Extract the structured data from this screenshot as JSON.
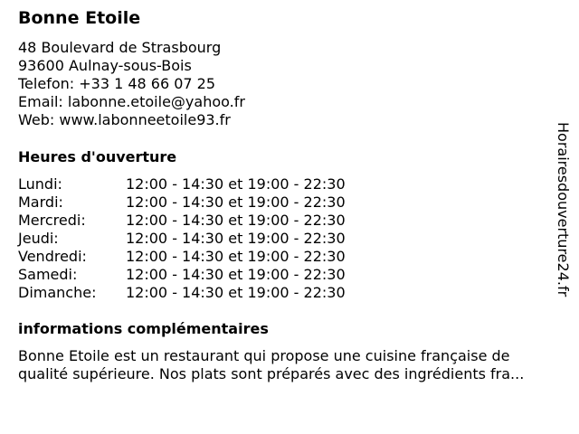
{
  "title": "Bonne Etoile",
  "address": [
    "48 Boulevard de Strasbourg",
    "93600 Aulnay-sous-Bois",
    "Telefon: +33 1 48 66 07 25",
    "Email: labonne.etoile@yahoo.fr",
    "Web: www.labonneetoile93.fr"
  ],
  "hours_heading": "Heures d'ouverture",
  "hours": [
    {
      "day": "Lundi:",
      "time": "12:00 - 14:30 et 19:00 - 22:30"
    },
    {
      "day": "Mardi:",
      "time": "12:00 - 14:30 et 19:00 - 22:30"
    },
    {
      "day": "Mercredi:",
      "time": "12:00 - 14:30 et 19:00 - 22:30"
    },
    {
      "day": "Jeudi:",
      "time": "12:00 - 14:30 et 19:00 - 22:30"
    },
    {
      "day": "Vendredi:",
      "time": "12:00 - 14:30 et 19:00 - 22:30"
    },
    {
      "day": "Samedi:",
      "time": "12:00 - 14:30 et 19:00 - 22:30"
    },
    {
      "day": "Dimanche:",
      "time": "12:00 - 14:30 et 19:00 - 22:30"
    }
  ],
  "info_heading": "informations complémentaires",
  "info_lines": [
    "Bonne Etoile est un restaurant qui propose une cuisine française de",
    "qualité supérieure. Nos plats sont préparés avec des ingrédients fra..."
  ],
  "watermark": "Horairesdouverture24.fr"
}
